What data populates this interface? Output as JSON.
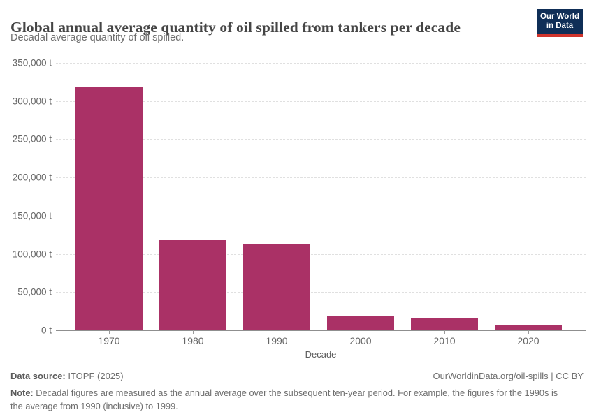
{
  "header": {
    "title": "Global annual average quantity of oil spilled from tankers per decade",
    "subtitle": "Decadal average quantity of oil spilled.",
    "logo": {
      "line1": "Our World",
      "line2": "in Data",
      "bg_color": "#0f2e57",
      "stripe_color": "#d0342c"
    }
  },
  "chart_data": {
    "type": "bar",
    "categories": [
      "1970",
      "1980",
      "1990",
      "2000",
      "2010",
      "2020"
    ],
    "values": [
      319000,
      117500,
      113000,
      19500,
      16000,
      7300
    ],
    "title": "Global annual average quantity of oil spilled from tankers per decade",
    "subtitle": "Decadal average quantity of oil spilled.",
    "xlabel": "Decade",
    "ylabel": "",
    "ylim": [
      0,
      350000
    ],
    "ytick_step": 50000,
    "ytick_labels": [
      "0 t",
      "50,000 t",
      "100,000 t",
      "150,000 t",
      "200,000 t",
      "250,000 t",
      "300,000 t",
      "350,000 t"
    ],
    "unit": "t",
    "bar_color": "#aa3166",
    "grid": true,
    "gridline_style": "dashed",
    "legend": false
  },
  "footer": {
    "datasource_label": "Data source:",
    "datasource_value": " ITOPF (2025)",
    "citation": "OurWorldinData.org/oil-spills | CC BY",
    "note_label": "Note:",
    "note_text": " Decadal figures are measured as the annual average over the subsequent ten-year period. For example, the figures for the 1990s is the average from 1990 (inclusive) to 1999."
  }
}
